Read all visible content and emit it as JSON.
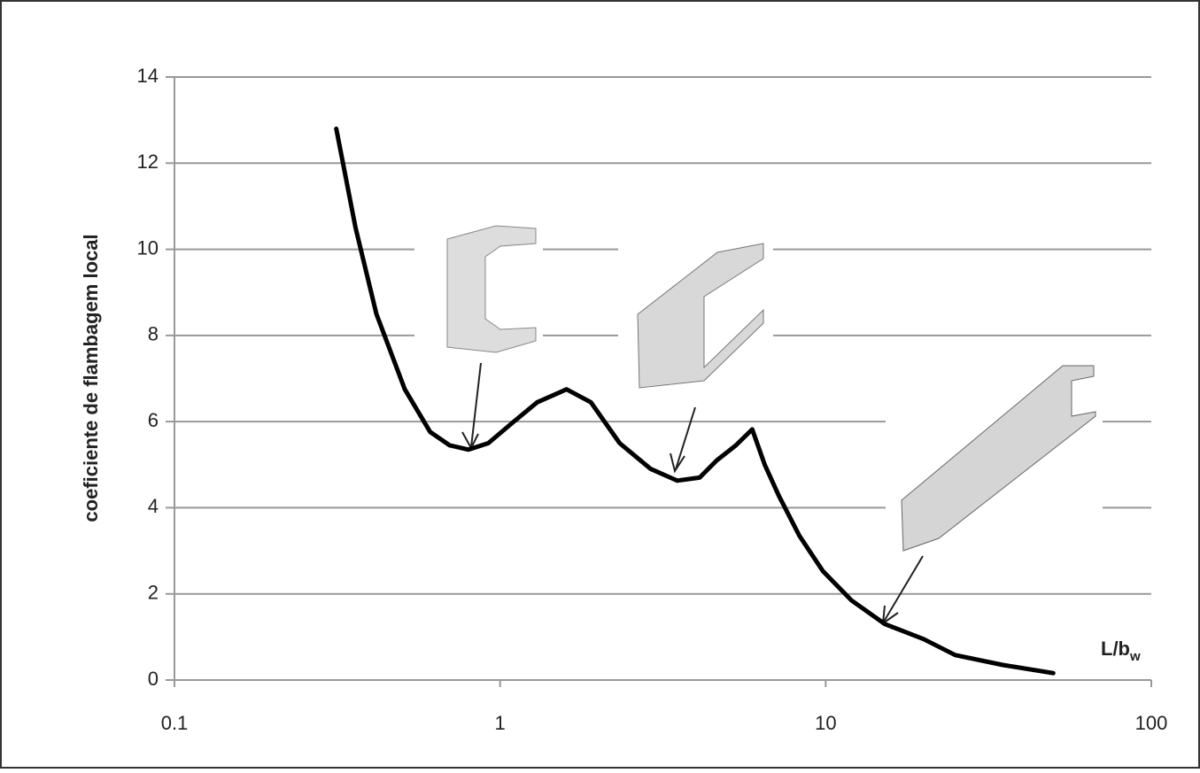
{
  "chart_data": {
    "type": "line",
    "y_label": "coeficiente de flambagem local",
    "x_label": "L/b",
    "x_label_subscript": "w",
    "x": [
      0.314,
      0.36,
      0.417,
      0.51,
      0.61,
      0.7,
      0.8,
      0.92,
      1.09,
      1.3,
      1.6,
      1.9,
      2.33,
      2.9,
      3.5,
      4.1,
      4.63,
      5.3,
      5.95,
      6.5,
      7.18,
      8.3,
      9.8,
      12,
      15.2,
      20,
      25,
      35,
      50
    ],
    "values": [
      12.8,
      10.5,
      8.5,
      6.75,
      5.76,
      5.45,
      5.35,
      5.5,
      5.97,
      6.45,
      6.75,
      6.45,
      5.5,
      4.9,
      4.63,
      4.7,
      5.1,
      5.45,
      5.82,
      5.0,
      4.28,
      3.35,
      2.53,
      1.85,
      1.3,
      0.95,
      0.58,
      0.35,
      0.16
    ],
    "color": "#000000",
    "xscale": "log",
    "xlim": [
      0.1,
      100
    ],
    "xticks": [
      0.1,
      1,
      10,
      100
    ],
    "ylim": [
      0,
      14
    ],
    "yticks": [
      0,
      2,
      4,
      6,
      8,
      10,
      12,
      14
    ],
    "grid": true
  }
}
